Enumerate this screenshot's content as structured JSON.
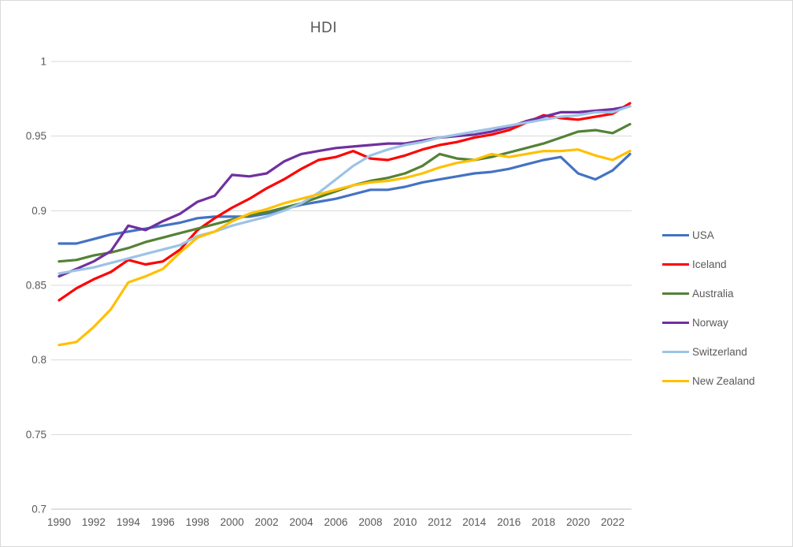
{
  "title": "HDI",
  "y_axis": {
    "tick_labels": [
      "1",
      "0.95",
      "0.9",
      "0.85",
      "0.8",
      "0.75",
      "0.7"
    ],
    "tick_values": [
      1.0,
      0.95,
      0.9,
      0.85,
      0.8,
      0.75,
      0.7
    ]
  },
  "x_axis": {
    "tick_labels": [
      "1990",
      "1992",
      "1994",
      "1996",
      "1998",
      "2000",
      "2002",
      "2004",
      "2006",
      "2008",
      "2010",
      "2012",
      "2014",
      "2016",
      "2018",
      "2020",
      "2022"
    ],
    "tick_values": [
      1990,
      1992,
      1994,
      1996,
      1998,
      2000,
      2002,
      2004,
      2006,
      2008,
      2010,
      2012,
      2014,
      2016,
      2018,
      2020,
      2022
    ]
  },
  "colors": {
    "gridline": "#d9d9d9",
    "axis_line": "#bfbfbf",
    "text": "#595959",
    "background": "#ffffff"
  },
  "chart_data": {
    "type": "line",
    "title": "HDI",
    "xlabel": "",
    "ylabel": "",
    "xlim": [
      1990,
      2023
    ],
    "ylim": [
      0.7,
      1.0
    ],
    "grid": true,
    "legend_position": "right",
    "x": [
      1990,
      1991,
      1992,
      1993,
      1994,
      1995,
      1996,
      1997,
      1998,
      1999,
      2000,
      2001,
      2002,
      2003,
      2004,
      2005,
      2006,
      2007,
      2008,
      2009,
      2010,
      2011,
      2012,
      2013,
      2014,
      2015,
      2016,
      2017,
      2018,
      2019,
      2020,
      2021,
      2022,
      2023
    ],
    "series": [
      {
        "name": "USA",
        "color": "#4472C4",
        "values": [
          0.878,
          0.878,
          0.881,
          0.884,
          0.886,
          0.888,
          0.89,
          0.892,
          0.895,
          0.896,
          0.896,
          0.896,
          0.898,
          0.901,
          0.904,
          0.906,
          0.908,
          0.911,
          0.914,
          0.914,
          0.916,
          0.919,
          0.921,
          0.923,
          0.925,
          0.926,
          0.928,
          0.931,
          0.934,
          0.936,
          0.925,
          0.921,
          0.927,
          0.938
        ]
      },
      {
        "name": "Iceland",
        "color": "#FF0000",
        "values": [
          0.84,
          0.848,
          0.854,
          0.859,
          0.867,
          0.864,
          0.866,
          0.874,
          0.887,
          0.895,
          0.902,
          0.908,
          0.915,
          0.921,
          0.928,
          0.934,
          0.936,
          0.94,
          0.935,
          0.934,
          0.937,
          0.941,
          0.944,
          0.946,
          0.949,
          0.951,
          0.954,
          0.959,
          0.964,
          0.962,
          0.961,
          0.963,
          0.965,
          0.972
        ]
      },
      {
        "name": "Australia",
        "color": "#548235",
        "values": [
          0.866,
          0.867,
          0.87,
          0.872,
          0.875,
          0.879,
          0.882,
          0.885,
          0.888,
          0.891,
          0.894,
          0.897,
          0.899,
          0.902,
          0.905,
          0.909,
          0.913,
          0.917,
          0.92,
          0.922,
          0.925,
          0.93,
          0.938,
          0.935,
          0.934,
          0.936,
          0.939,
          0.942,
          0.945,
          0.949,
          0.953,
          0.954,
          0.952,
          0.958
        ]
      },
      {
        "name": "Norway",
        "color": "#7030A0",
        "values": [
          0.856,
          0.861,
          0.866,
          0.873,
          0.89,
          0.887,
          0.893,
          0.898,
          0.906,
          0.91,
          0.924,
          0.923,
          0.925,
          0.933,
          0.938,
          0.94,
          0.942,
          0.943,
          0.944,
          0.945,
          0.945,
          0.947,
          0.949,
          0.95,
          0.951,
          0.953,
          0.956,
          0.96,
          0.963,
          0.966,
          0.966,
          0.967,
          0.968,
          0.97
        ]
      },
      {
        "name": "Switzerland",
        "color": "#9DC3E6",
        "values": [
          0.858,
          0.86,
          0.862,
          0.865,
          0.868,
          0.871,
          0.874,
          0.877,
          0.883,
          0.886,
          0.89,
          0.893,
          0.896,
          0.9,
          0.905,
          0.912,
          0.921,
          0.93,
          0.937,
          0.941,
          0.944,
          0.946,
          0.949,
          0.951,
          0.953,
          0.955,
          0.957,
          0.959,
          0.961,
          0.963,
          0.964,
          0.966,
          0.966,
          0.97
        ]
      },
      {
        "name": "New Zealand",
        "color": "#FFC000",
        "values": [
          0.81,
          0.812,
          0.822,
          0.834,
          0.852,
          0.856,
          0.861,
          0.872,
          0.882,
          0.886,
          0.893,
          0.898,
          0.901,
          0.905,
          0.908,
          0.911,
          0.914,
          0.917,
          0.919,
          0.92,
          0.922,
          0.925,
          0.929,
          0.932,
          0.934,
          0.938,
          0.936,
          0.938,
          0.94,
          0.94,
          0.941,
          0.937,
          0.934,
          0.94
        ]
      }
    ]
  }
}
